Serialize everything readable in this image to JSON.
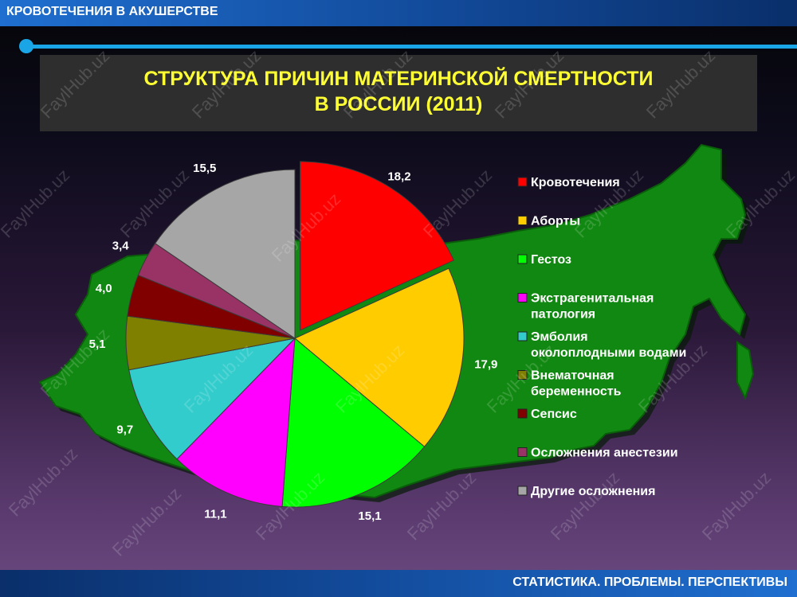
{
  "header": {
    "label": "КРОВОТЕЧЕНИЯ В АКУШЕРСТВЕ"
  },
  "footer": {
    "label": "СТАТИСТИКА. ПРОБЛЕМЫ. ПЕРСПЕКТИВЫ"
  },
  "watermark": "FaylHub.uz",
  "colors": {
    "accent_line": "#1aa6e6",
    "title_text": "#ffff33",
    "map_fill": "#118811"
  },
  "chart_data": {
    "type": "pie",
    "title": "СТРУКТУРА ПРИЧИН МАТЕРИНСКОЙ СМЕРТНОСТИ В РОССИИ (2011)",
    "title_lines": [
      "СТРУКТУРА ПРИЧИН МАТЕРИНСКОЙ СМЕРТНОСТИ",
      "В РОССИИ (2011)"
    ],
    "slices": [
      {
        "label": "Кровотечения",
        "legend_lines": [
          "Кровотечения"
        ],
        "value": 18.2,
        "value_text": "18,2",
        "color": "#ff0000",
        "exploded": true
      },
      {
        "label": "Аборты",
        "legend_lines": [
          "Аборты"
        ],
        "value": 17.9,
        "value_text": "17,9",
        "color": "#ffcc00"
      },
      {
        "label": "Гестоз",
        "legend_lines": [
          "Гестоз"
        ],
        "value": 15.1,
        "value_text": "15,1",
        "color": "#00ff00"
      },
      {
        "label": "Экстрагенитальная патология",
        "legend_lines": [
          "Экстрагенитальная",
          "патология"
        ],
        "value": 11.1,
        "value_text": "11,1",
        "color": "#ff00ff"
      },
      {
        "label": "Эмболия околоплодными водами",
        "legend_lines": [
          "Эмболия",
          "околоплодными водами"
        ],
        "value": 9.7,
        "value_text": "9,7",
        "color": "#33cccc"
      },
      {
        "label": "Внематочная беременность",
        "legend_lines": [
          "Внематочная",
          "беременность"
        ],
        "value": 5.1,
        "value_text": "5,1",
        "color": "#808000"
      },
      {
        "label": "Сепсис",
        "legend_lines": [
          "Сепсис"
        ],
        "value": 4.0,
        "value_text": "4,0",
        "color": "#800000"
      },
      {
        "label": "Осложнения анестезии",
        "legend_lines": [
          "Осложнения анестезии"
        ],
        "value": 3.4,
        "value_text": "3,4",
        "color": "#993366"
      },
      {
        "label": "Другие осложнения",
        "legend_lines": [
          "Другие осложнения"
        ],
        "value": 15.5,
        "value_text": "15,5",
        "color": "#a6a6a6"
      }
    ],
    "legend_position": "right"
  }
}
